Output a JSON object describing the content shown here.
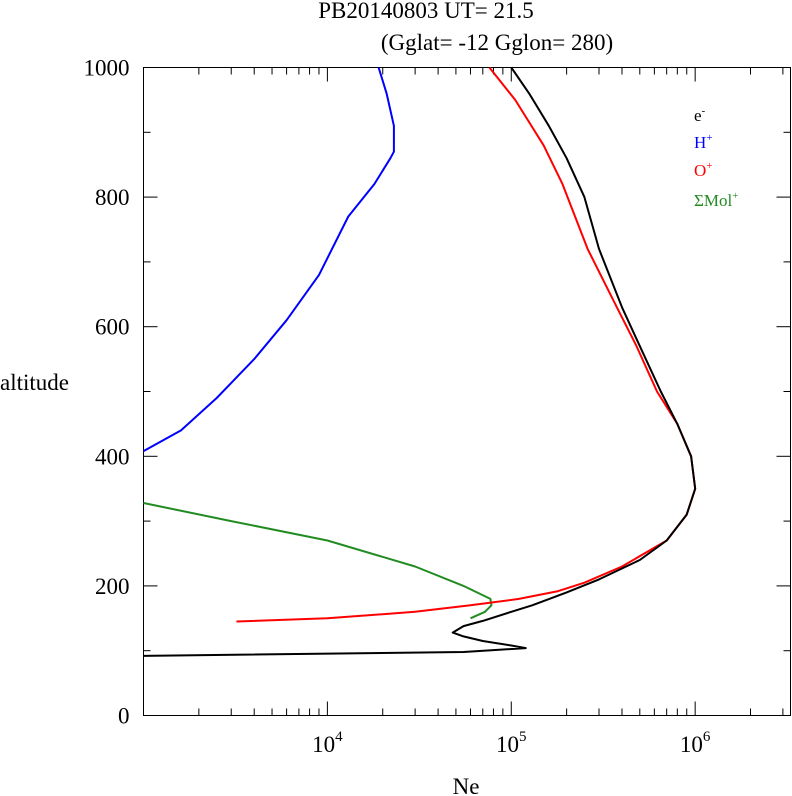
{
  "title": "PB20140803   UT=  21.5",
  "subtitle": "(Gglat= -12   Gglon=  280)",
  "chart_data": {
    "type": "line",
    "title": "PB20140803   UT=  21.5",
    "subtitle": "(Gglat= -12   Gglon=  280)",
    "xlabel": "Ne",
    "ylabel": "altitude",
    "xscale": "log",
    "xlim": [
      1000,
      3300000
    ],
    "ylim": [
      0,
      1000
    ],
    "x_ticks": [
      {
        "value": 10000,
        "base": "10",
        "exp": "4"
      },
      {
        "value": 100000,
        "base": "10",
        "exp": "5"
      },
      {
        "value": 1000000,
        "base": "10",
        "exp": "6"
      }
    ],
    "y_ticks": [
      "0",
      "200",
      "400",
      "600",
      "800",
      "1000"
    ],
    "grid": false,
    "legend_position": "top-right",
    "series": [
      {
        "name": "e-",
        "label_base": "e",
        "label_sup": "-",
        "color": "#000000",
        "points": [
          [
            1000,
            92
          ],
          [
            55000,
            98
          ],
          [
            80000,
            101
          ],
          [
            120000,
            104
          ],
          [
            100000,
            108
          ],
          [
            70000,
            115
          ],
          [
            55000,
            122
          ],
          [
            48000,
            128
          ],
          [
            55000,
            138
          ],
          [
            70000,
            146
          ],
          [
            100000,
            160
          ],
          [
            130000,
            170
          ],
          [
            200000,
            190
          ],
          [
            300000,
            210
          ],
          [
            500000,
            240
          ],
          [
            700000,
            270
          ],
          [
            900000,
            310
          ],
          [
            1000000,
            350
          ],
          [
            950000,
            400
          ],
          [
            800000,
            450
          ],
          [
            650000,
            500
          ],
          [
            500000,
            570
          ],
          [
            400000,
            630
          ],
          [
            300000,
            720
          ],
          [
            250000,
            800
          ],
          [
            200000,
            860
          ],
          [
            160000,
            910
          ],
          [
            125000,
            960
          ],
          [
            100000,
            1000
          ]
        ]
      },
      {
        "name": "H+",
        "label_base": "H",
        "label_sup": "+",
        "color": "#0000ff",
        "points": [
          [
            1000,
            408
          ],
          [
            1600,
            440
          ],
          [
            2500,
            490
          ],
          [
            4000,
            550
          ],
          [
            6000,
            610
          ],
          [
            9000,
            680
          ],
          [
            13000,
            770
          ],
          [
            18000,
            820
          ],
          [
            22000,
            860
          ],
          [
            23000,
            870
          ],
          [
            23000,
            910
          ],
          [
            21000,
            960
          ],
          [
            19000,
            1000
          ]
        ]
      },
      {
        "name": "O+",
        "label_base": "O",
        "label_sup": "+",
        "color": "#ff0000",
        "points": [
          [
            3200,
            145
          ],
          [
            10000,
            150
          ],
          [
            30000,
            160
          ],
          [
            60000,
            170
          ],
          [
            110000,
            180
          ],
          [
            180000,
            192
          ],
          [
            250000,
            205
          ],
          [
            400000,
            230
          ],
          [
            700000,
            270
          ],
          [
            900000,
            310
          ],
          [
            1000000,
            350
          ],
          [
            950000,
            400
          ],
          [
            800000,
            450
          ],
          [
            620000,
            500
          ],
          [
            480000,
            570
          ],
          [
            360000,
            640
          ],
          [
            260000,
            720
          ],
          [
            190000,
            820
          ],
          [
            150000,
            880
          ],
          [
            105000,
            950
          ],
          [
            76000,
            1000
          ]
        ]
      },
      {
        "name": "ΣMol+",
        "label_base": "ΣMol",
        "label_sup": "+",
        "color": "#228b22",
        "points": [
          [
            1000,
            328
          ],
          [
            3000,
            300
          ],
          [
            10000,
            270
          ],
          [
            30000,
            230
          ],
          [
            55000,
            200
          ],
          [
            77000,
            180
          ],
          [
            78000,
            170
          ],
          [
            72000,
            160
          ],
          [
            60000,
            150
          ]
        ]
      }
    ]
  }
}
